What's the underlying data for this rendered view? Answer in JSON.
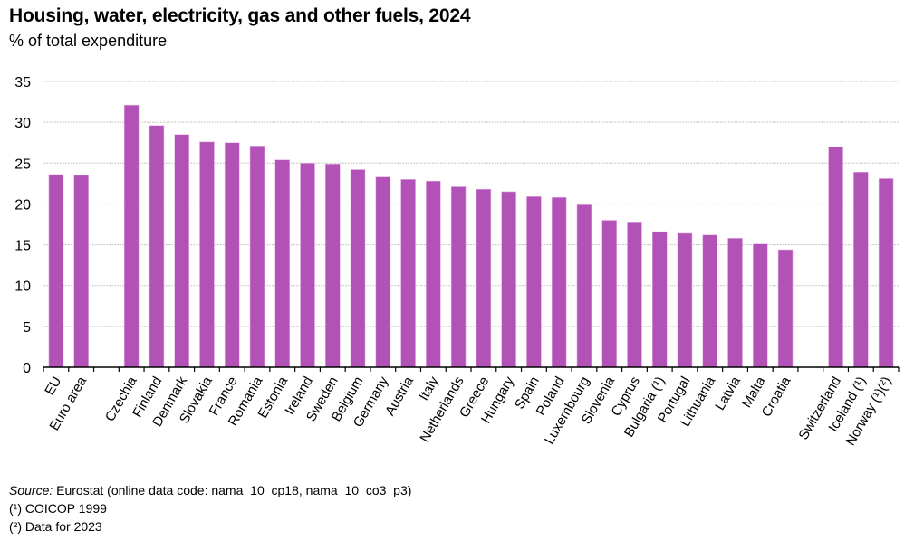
{
  "chart_data": {
    "type": "bar",
    "title": "Housing, water, electricity, gas and other fuels, 2024",
    "subtitle": "% of total expenditure",
    "xlabel": "",
    "ylabel": "",
    "ylim": [
      0,
      35
    ],
    "yticks": [
      0,
      5,
      10,
      15,
      20,
      25,
      30,
      35
    ],
    "grid": true,
    "bar_color": "#b252b7",
    "categories": [
      "EU",
      "Euro area",
      "",
      "Czechia",
      "Finland",
      "Denmark",
      "Slovakia",
      "France",
      "Romania",
      "Estonia",
      "Ireland",
      "Sweden",
      "Belgium",
      "Germany",
      "Austria",
      "Italy",
      "Netherlands",
      "Greece",
      "Hungary",
      "Spain",
      "Poland",
      "Luxembourg",
      "Slovenia",
      "Cyprus",
      "Bulgaria (¹)",
      "Portugal",
      "Lithuania",
      "Latvia",
      "Malta",
      "Croatia",
      "",
      "Switzerland",
      "Iceland (¹)",
      "Norway (¹)(²)"
    ],
    "values": [
      23.6,
      23.5,
      null,
      32.1,
      29.6,
      28.5,
      27.6,
      27.5,
      27.1,
      25.4,
      25.0,
      24.9,
      24.2,
      23.3,
      23.0,
      22.8,
      22.1,
      21.8,
      21.5,
      20.9,
      20.8,
      19.9,
      18.0,
      17.8,
      16.6,
      16.4,
      16.2,
      15.8,
      15.1,
      14.4,
      null,
      27.0,
      23.9,
      23.1
    ]
  },
  "footer": {
    "source_label": "Source:",
    "source_text": " Eurostat (online data code: nama_10_cp18, nama_10_co3_p3)",
    "note1": "(¹) COICOP 1999",
    "note2": "(²) Data for 2023"
  }
}
